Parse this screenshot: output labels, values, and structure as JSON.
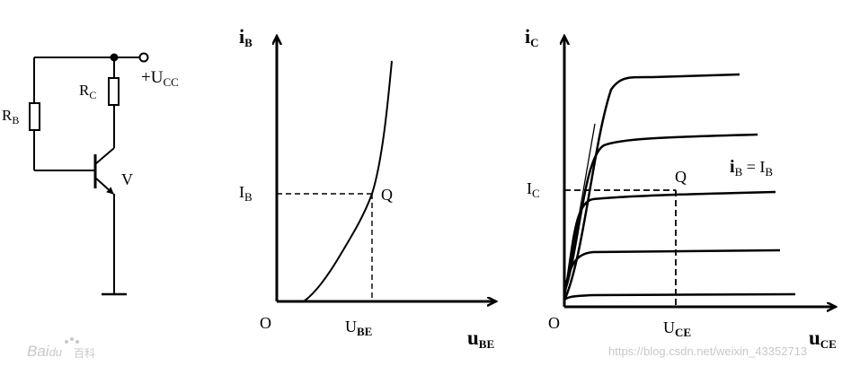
{
  "circuit": {
    "rb_main": "R",
    "rb_sub": "B",
    "rc_main": "R",
    "rc_sub": "C",
    "vcc_main": "+U",
    "vcc_sub": "CC",
    "transistor": "V"
  },
  "input_chart": {
    "y_axis_main": "i",
    "y_axis_sub": "B",
    "x_axis_main": "u",
    "x_axis_sub": "BE",
    "origin": "O",
    "level_main": "I",
    "level_sub": "B",
    "point": "Q",
    "x_tick_main": "U",
    "x_tick_sub": "BE"
  },
  "output_chart": {
    "y_axis_main": "i",
    "y_axis_sub": "C",
    "x_axis_main": "u",
    "x_axis_sub": "CE",
    "origin": "O",
    "level_main": "I",
    "level_sub": "C",
    "point": "Q",
    "x_tick_main": "U",
    "x_tick_sub": "CE",
    "curve_label": "i",
    "curve_label_sub": "B",
    "curve_label_eq": " = I",
    "curve_label_sub2": "B"
  },
  "watermarks": {
    "left_a": "Bai",
    "left_b": "du",
    "left_c": "百科",
    "right": "https://blog.csdn.net/weixin_43352713"
  }
}
